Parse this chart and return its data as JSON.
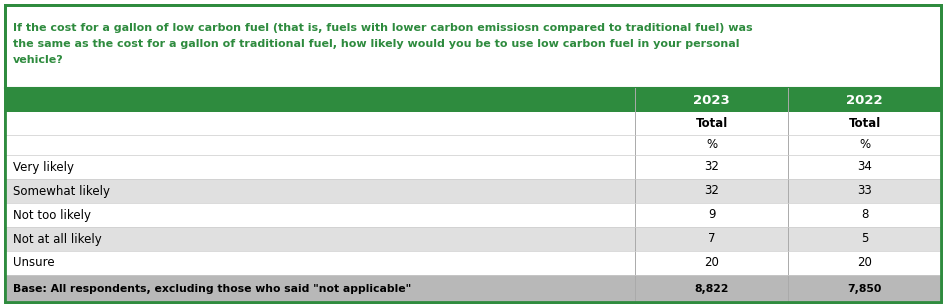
{
  "question_lines": [
    "If the cost for a gallon of low carbon fuel (that is, fuels with lower carbon emissiosn compared to traditional fuel) was",
    "the same as the cost for a gallon of traditional fuel, how likely would you be to use low carbon fuel in your personal",
    "vehicle?"
  ],
  "header_labels": [
    "2023",
    "2022"
  ],
  "subheader1": [
    "Total",
    "Total"
  ],
  "subheader2": [
    "%",
    "%"
  ],
  "rows": [
    [
      "Very likely",
      "32",
      "34"
    ],
    [
      "Somewhat likely",
      "32",
      "33"
    ],
    [
      "Not too likely",
      "9",
      "8"
    ],
    [
      "Not at all likely",
      "7",
      "5"
    ],
    [
      "Unsure",
      "20",
      "20"
    ]
  ],
  "base_row": [
    "Base: All respondents, excluding those who said \"not applicable\"",
    "8,822",
    "7,850"
  ],
  "header_bg": "#2e8b3e",
  "header_text_color": "#ffffff",
  "question_text_color": "#2e8b3e",
  "base_row_bg": "#b8b8b8",
  "border_color": "#2e8b3e",
  "row_colors": [
    "#ffffff",
    "#e0e0e0"
  ],
  "figsize": [
    9.46,
    3.07
  ],
  "dpi": 100
}
